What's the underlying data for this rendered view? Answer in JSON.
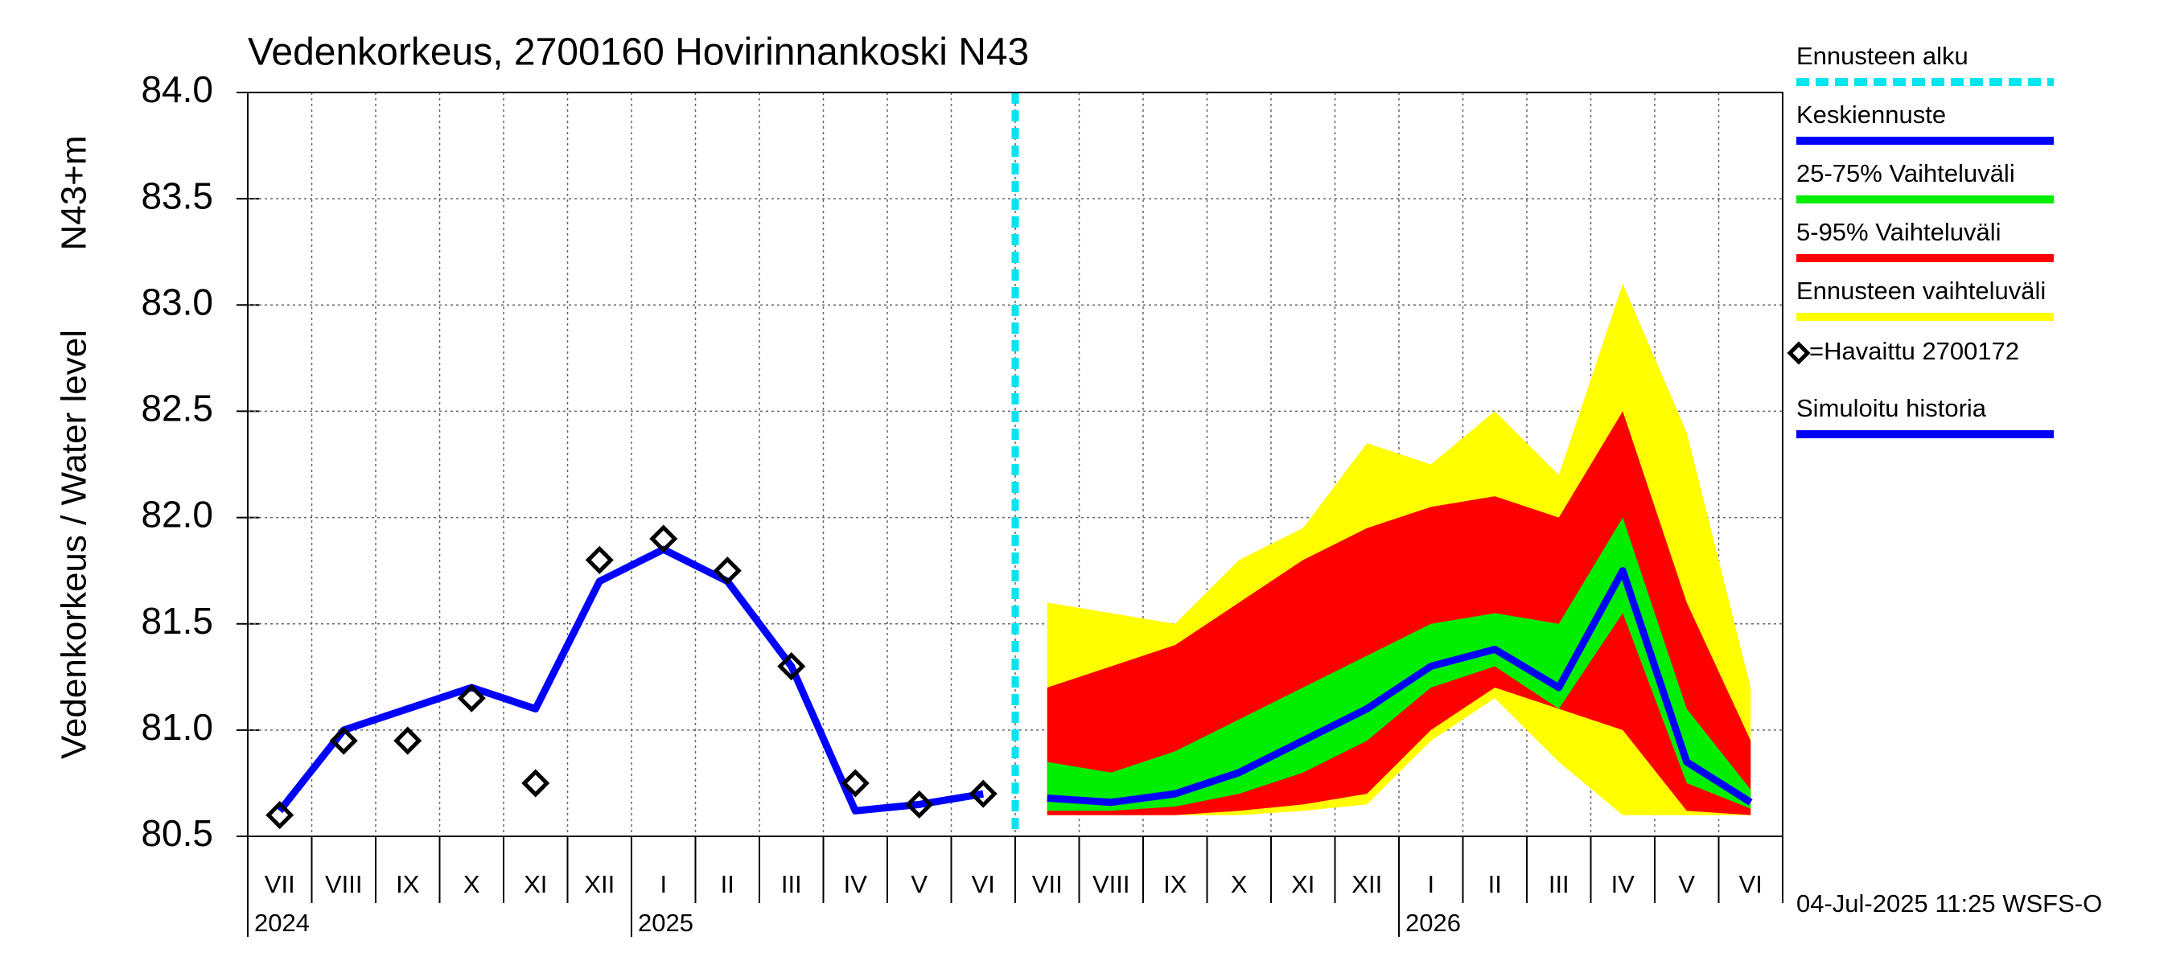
{
  "chart_data": {
    "type": "line",
    "title": "Vedenkorkeus, 2700160 Hovirinnankoski N43",
    "y_label": "Vedenkorkeus / Water level",
    "y_unit_label": "N43+m",
    "footer": "04-Jul-2025 11:25 WSFS-O",
    "categories": [
      "VII",
      "VIII",
      "IX",
      "X",
      "XI",
      "XII",
      "I",
      "II",
      "III",
      "IV",
      "V",
      "VI",
      "VII",
      "VIII",
      "IX",
      "X",
      "XI",
      "XII",
      "I",
      "II",
      "III",
      "IV",
      "V",
      "VI"
    ],
    "year_labels": [
      "2024",
      "2025",
      "2026"
    ],
    "ylim": [
      80.5,
      84.0
    ],
    "yticks": [
      80.5,
      {
        "value": 81,
        "label": "81.0"
      },
      81.5,
      {
        "value": 82,
        "label": "82.0"
      },
      82.5,
      {
        "value": 83,
        "label": "83.0"
      },
      83.5,
      {
        "value": 84,
        "label": "84.0"
      }
    ],
    "grid": true,
    "forecast_start": {
      "name": "Ennusteen alku",
      "color": "#00e5ee"
    },
    "bands": [
      {
        "name": "Ennusteen vaihteluväli",
        "color": "#ffff00",
        "low": [
          null,
          null,
          null,
          null,
          null,
          null,
          null,
          null,
          null,
          null,
          null,
          null,
          80.6,
          80.6,
          80.6,
          80.6,
          80.62,
          80.65,
          80.95,
          81.15,
          80.85,
          80.6,
          80.6,
          80.6
        ],
        "high": [
          null,
          null,
          null,
          null,
          null,
          null,
          null,
          null,
          null,
          null,
          null,
          null,
          81.6,
          81.55,
          81.5,
          81.8,
          81.95,
          82.35,
          82.25,
          82.5,
          82.2,
          83.1,
          82.4,
          81.2
        ]
      },
      {
        "name": "5-95% Vaihteluväli",
        "color": "#ff0000",
        "low": [
          null,
          null,
          null,
          null,
          null,
          null,
          null,
          null,
          null,
          null,
          null,
          null,
          80.6,
          80.6,
          80.6,
          80.62,
          80.65,
          80.7,
          81.0,
          81.2,
          81.1,
          81.0,
          80.62,
          80.6
        ],
        "high": [
          null,
          null,
          null,
          null,
          null,
          null,
          null,
          null,
          null,
          null,
          null,
          null,
          81.2,
          81.3,
          81.4,
          81.6,
          81.8,
          81.95,
          82.05,
          82.1,
          82.0,
          82.5,
          81.6,
          80.95
        ]
      },
      {
        "name": "25-75% Vaihteluväli",
        "color": "#00ee00",
        "low": [
          null,
          null,
          null,
          null,
          null,
          null,
          null,
          null,
          null,
          null,
          null,
          null,
          80.62,
          80.62,
          80.64,
          80.7,
          80.8,
          80.95,
          81.2,
          81.3,
          81.1,
          81.55,
          80.75,
          80.63
        ],
        "high": [
          null,
          null,
          null,
          null,
          null,
          null,
          null,
          null,
          null,
          null,
          null,
          null,
          80.85,
          80.8,
          80.9,
          81.05,
          81.2,
          81.35,
          81.5,
          81.55,
          81.5,
          82.0,
          81.1,
          80.72
        ]
      }
    ],
    "series": [
      {
        "name": "Keskiennuste",
        "color": "#0000ff",
        "values": [
          null,
          null,
          null,
          null,
          null,
          null,
          null,
          null,
          null,
          null,
          null,
          null,
          80.68,
          80.66,
          80.7,
          80.8,
          80.95,
          81.1,
          81.3,
          81.38,
          81.2,
          81.75,
          80.85,
          80.66
        ]
      },
      {
        "name": "Simuloitu historia",
        "color": "#0000ff",
        "values": [
          80.62,
          81.0,
          81.1,
          81.2,
          81.1,
          81.7,
          81.85,
          81.7,
          81.3,
          80.62,
          80.65,
          80.7,
          null,
          null,
          null,
          null,
          null,
          null,
          null,
          null,
          null,
          null,
          null,
          null
        ]
      },
      {
        "name": "=Havaittu 2700172",
        "color": "#000000",
        "marker": "diamond",
        "values": [
          80.6,
          80.95,
          80.95,
          81.15,
          80.75,
          81.8,
          81.9,
          81.75,
          81.3,
          80.75,
          80.65,
          80.7,
          null,
          null,
          null,
          null,
          null,
          null,
          null,
          null,
          null,
          null,
          null,
          null
        ]
      }
    ]
  }
}
